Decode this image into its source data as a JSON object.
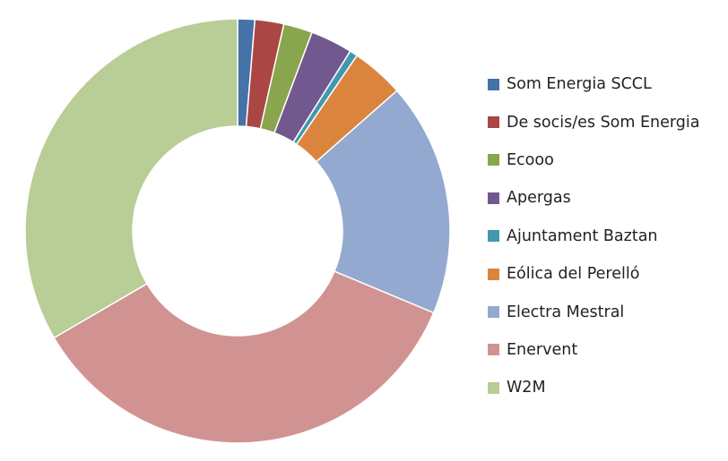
{
  "chart_data": {
    "type": "pie",
    "variant": "donut",
    "title": "",
    "legend_position": "right",
    "categories": [
      "Som Energia SCCL",
      "De socis/es Som Energia",
      "Ecooo",
      "Apergas",
      "Ajuntament Baztan",
      "Eólica del Perelló",
      "Electra Mestral",
      "Enervent",
      "W2M"
    ],
    "values": [
      1.3,
      2.2,
      2.2,
      3.2,
      0.6,
      4.0,
      17.8,
      35.3,
      33.4
    ],
    "colors": [
      "#4572A7",
      "#AA4643",
      "#89A54E",
      "#71588F",
      "#4198AF",
      "#DB843D",
      "#93A9CF",
      "#D19392",
      "#B9CD96"
    ]
  }
}
